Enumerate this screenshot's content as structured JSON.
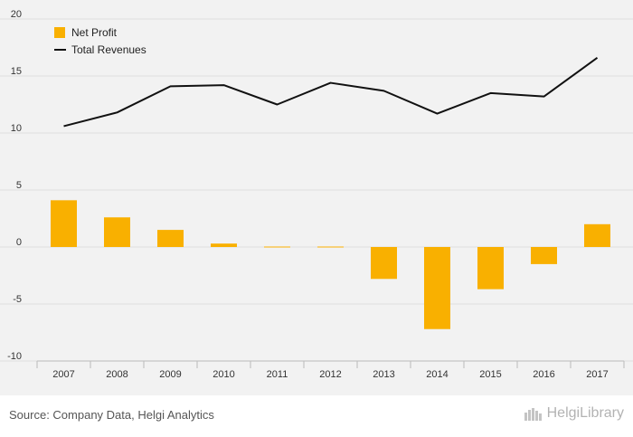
{
  "chart_data": {
    "type": "bar",
    "categories": [
      "2007",
      "2008",
      "2009",
      "2010",
      "2011",
      "2012",
      "2013",
      "2014",
      "2015",
      "2016",
      "2017"
    ],
    "series": [
      {
        "name": "Net Profit",
        "kind": "bar",
        "color": "#f9b000",
        "values": [
          4.1,
          2.6,
          1.5,
          0.3,
          -0.05,
          -0.05,
          -2.8,
          -7.2,
          -3.7,
          -1.5,
          2.0
        ]
      },
      {
        "name": "Total Revenues",
        "kind": "line",
        "color": "#111111",
        "values": [
          10.6,
          11.8,
          14.1,
          14.2,
          12.5,
          14.4,
          13.7,
          11.7,
          13.5,
          13.2,
          16.6
        ]
      }
    ],
    "ylim": [
      -10,
      20
    ],
    "yticks": [
      20,
      15,
      10,
      5,
      0,
      -5,
      -10
    ],
    "grid": true,
    "legend_position": "top-left"
  },
  "footer": {
    "source": "Source: Company Data, Helgi Analytics",
    "brand": "HelgiLibrary"
  }
}
